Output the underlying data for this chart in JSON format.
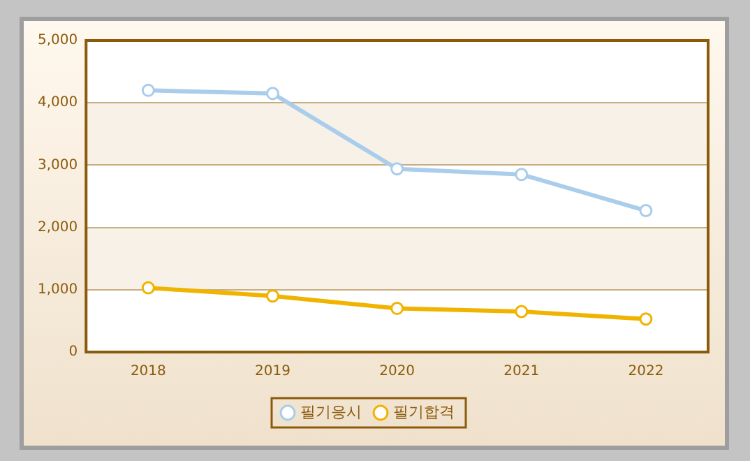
{
  "chart_data": {
    "type": "line",
    "categories": [
      "2018",
      "2019",
      "2020",
      "2021",
      "2022"
    ],
    "series": [
      {
        "name": "필기응시",
        "color": "#a9cdea",
        "values": [
          4200,
          4150,
          2940,
          2850,
          2270
        ]
      },
      {
        "name": "필기합격",
        "color": "#f0b400",
        "values": [
          1030,
          900,
          700,
          650,
          530
        ]
      }
    ],
    "ylim": [
      0,
      5000
    ],
    "yticks": [
      {
        "value": 0,
        "label": "0"
      },
      {
        "value": 1000,
        "label": "1,000"
      },
      {
        "value": 2000,
        "label": "2,000"
      },
      {
        "value": 3000,
        "label": "3,000"
      },
      {
        "value": 4000,
        "label": "4,000"
      },
      {
        "value": 5000,
        "label": "5,000"
      }
    ],
    "grid": "y",
    "legend": "bottom",
    "marker": "circle",
    "line_style": "solid"
  }
}
